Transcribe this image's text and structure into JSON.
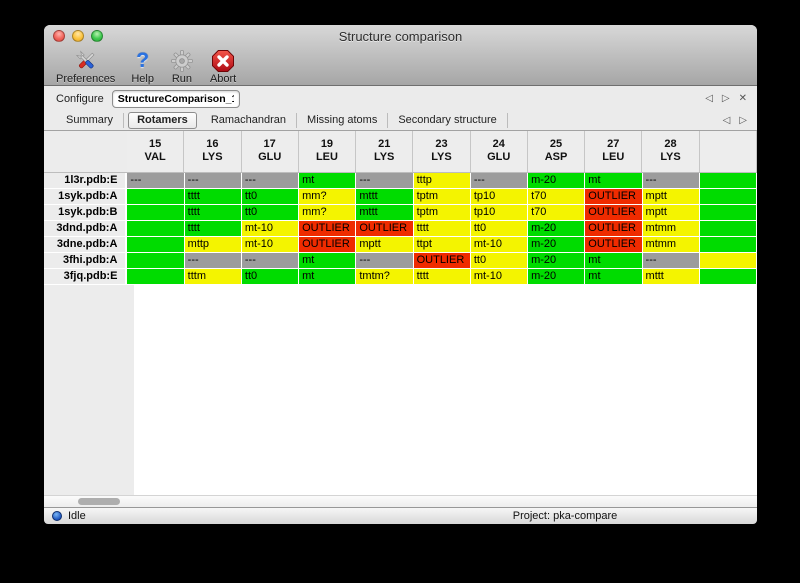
{
  "window": {
    "title": "Structure comparison"
  },
  "toolbar": {
    "items": [
      {
        "label": "Preferences",
        "icon": "tools-icon"
      },
      {
        "label": "Help",
        "icon": "help-icon"
      },
      {
        "label": "Run",
        "icon": "gear-icon"
      },
      {
        "label": "Abort",
        "icon": "abort-icon"
      }
    ]
  },
  "configure": {
    "label": "Configure",
    "value": "StructureComparison_1",
    "nav_prev": "◁",
    "nav_next": "▷",
    "nav_close": "✕"
  },
  "tabs": {
    "items": [
      {
        "label": "Summary",
        "selected": false
      },
      {
        "label": "Rotamers",
        "selected": true
      },
      {
        "label": "Ramachandran",
        "selected": false
      },
      {
        "label": "Missing atoms",
        "selected": false
      },
      {
        "label": "Secondary structure",
        "selected": false
      }
    ],
    "nav_prev": "◁",
    "nav_next": "▷"
  },
  "colors": {
    "green": "#00dc00",
    "yellow": "#f4f400",
    "red": "#ef2b00",
    "gray": "#9c9c9c",
    "accent_header_underline": "#c6c6c6"
  },
  "table": {
    "columns": [
      {
        "num": "15",
        "res": "VAL"
      },
      {
        "num": "16",
        "res": "LYS"
      },
      {
        "num": "17",
        "res": "GLU"
      },
      {
        "num": "19",
        "res": "LEU"
      },
      {
        "num": "21",
        "res": "LYS"
      },
      {
        "num": "23",
        "res": "LYS"
      },
      {
        "num": "24",
        "res": "GLU"
      },
      {
        "num": "25",
        "res": "ASP"
      },
      {
        "num": "27",
        "res": "LEU"
      },
      {
        "num": "28",
        "res": "LYS"
      }
    ],
    "rows": [
      {
        "label": "1l3r.pdb:E",
        "cells": [
          {
            "v": "---",
            "c": "gray"
          },
          {
            "v": "---",
            "c": "gray"
          },
          {
            "v": "---",
            "c": "gray"
          },
          {
            "v": "mt",
            "c": "green"
          },
          {
            "v": "---",
            "c": "gray"
          },
          {
            "v": "tttp",
            "c": "yellow"
          },
          {
            "v": "---",
            "c": "gray"
          },
          {
            "v": "m-20",
            "c": "green"
          },
          {
            "v": "mt",
            "c": "green"
          },
          {
            "v": "---",
            "c": "gray"
          }
        ]
      },
      {
        "label": "1syk.pdb:A",
        "cells": [
          {
            "v": "",
            "c": "green"
          },
          {
            "v": "tttt",
            "c": "green"
          },
          {
            "v": "tt0",
            "c": "green"
          },
          {
            "v": "mm?",
            "c": "yellow"
          },
          {
            "v": "mttt",
            "c": "green"
          },
          {
            "v": "tptm",
            "c": "yellow"
          },
          {
            "v": "tp10",
            "c": "yellow"
          },
          {
            "v": "t70",
            "c": "yellow"
          },
          {
            "v": "OUTLIER",
            "c": "red"
          },
          {
            "v": "mptt",
            "c": "yellow"
          }
        ]
      },
      {
        "label": "1syk.pdb:B",
        "cells": [
          {
            "v": "",
            "c": "green"
          },
          {
            "v": "tttt",
            "c": "green"
          },
          {
            "v": "tt0",
            "c": "green"
          },
          {
            "v": "mm?",
            "c": "yellow"
          },
          {
            "v": "mttt",
            "c": "green"
          },
          {
            "v": "tptm",
            "c": "yellow"
          },
          {
            "v": "tp10",
            "c": "yellow"
          },
          {
            "v": "t70",
            "c": "yellow"
          },
          {
            "v": "OUTLIER",
            "c": "red"
          },
          {
            "v": "mptt",
            "c": "yellow"
          }
        ]
      },
      {
        "label": "3dnd.pdb:A",
        "cells": [
          {
            "v": "",
            "c": "green"
          },
          {
            "v": "tttt",
            "c": "green"
          },
          {
            "v": "mt-10",
            "c": "yellow"
          },
          {
            "v": "OUTLIER",
            "c": "red"
          },
          {
            "v": "OUTLIER",
            "c": "red"
          },
          {
            "v": "tttt",
            "c": "yellow"
          },
          {
            "v": "tt0",
            "c": "yellow"
          },
          {
            "v": "m-20",
            "c": "green"
          },
          {
            "v": "OUTLIER",
            "c": "red"
          },
          {
            "v": "mtmm",
            "c": "yellow"
          }
        ]
      },
      {
        "label": "3dne.pdb:A",
        "cells": [
          {
            "v": "",
            "c": "green"
          },
          {
            "v": "mttp",
            "c": "yellow"
          },
          {
            "v": "mt-10",
            "c": "yellow"
          },
          {
            "v": "OUTLIER",
            "c": "red"
          },
          {
            "v": "mptt",
            "c": "yellow"
          },
          {
            "v": "ttpt",
            "c": "yellow"
          },
          {
            "v": "mt-10",
            "c": "yellow"
          },
          {
            "v": "m-20",
            "c": "green"
          },
          {
            "v": "OUTLIER",
            "c": "red"
          },
          {
            "v": "mtmm",
            "c": "yellow"
          }
        ]
      },
      {
        "label": "3fhi.pdb:A",
        "cells": [
          {
            "v": "",
            "c": "green"
          },
          {
            "v": "---",
            "c": "gray"
          },
          {
            "v": "---",
            "c": "gray"
          },
          {
            "v": "mt",
            "c": "green"
          },
          {
            "v": "---",
            "c": "gray"
          },
          {
            "v": "OUTLIER",
            "c": "red"
          },
          {
            "v": "tt0",
            "c": "yellow"
          },
          {
            "v": "m-20",
            "c": "green"
          },
          {
            "v": "mt",
            "c": "green"
          },
          {
            "v": "---",
            "c": "gray"
          }
        ]
      },
      {
        "label": "3fjq.pdb:E",
        "cells": [
          {
            "v": "",
            "c": "green"
          },
          {
            "v": "tttm",
            "c": "yellow"
          },
          {
            "v": "tt0",
            "c": "green"
          },
          {
            "v": "mt",
            "c": "green"
          },
          {
            "v": "tmtm?",
            "c": "yellow"
          },
          {
            "v": "tttt",
            "c": "yellow"
          },
          {
            "v": "mt-10",
            "c": "yellow"
          },
          {
            "v": "m-20",
            "c": "green"
          },
          {
            "v": "mt",
            "c": "green"
          },
          {
            "v": "mttt",
            "c": "yellow"
          }
        ]
      }
    ],
    "clipped_column_colors": [
      "green",
      "green",
      "green",
      "green",
      "green",
      "yellow",
      "green"
    ]
  },
  "statusbar": {
    "status": "Idle",
    "project": "Project: pka-compare"
  }
}
